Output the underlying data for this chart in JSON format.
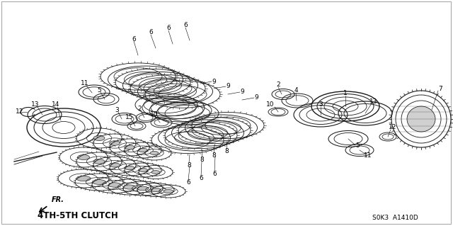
{
  "background_color": "#ffffff",
  "fig_width": 6.4,
  "fig_height": 3.19,
  "dpi": 100,
  "label_text": "4TH-5TH CLUTCH",
  "ref_code": "S0K3  A1410D",
  "fr_arrow_label": "FR.",
  "main_color": "#1a1a1a",
  "annotation_fontsize": 6.5,
  "label_fontsize": 8.5,
  "ref_fontsize": 6.5,
  "border_color": "#aaaaaa",
  "corner_color": "#999999"
}
